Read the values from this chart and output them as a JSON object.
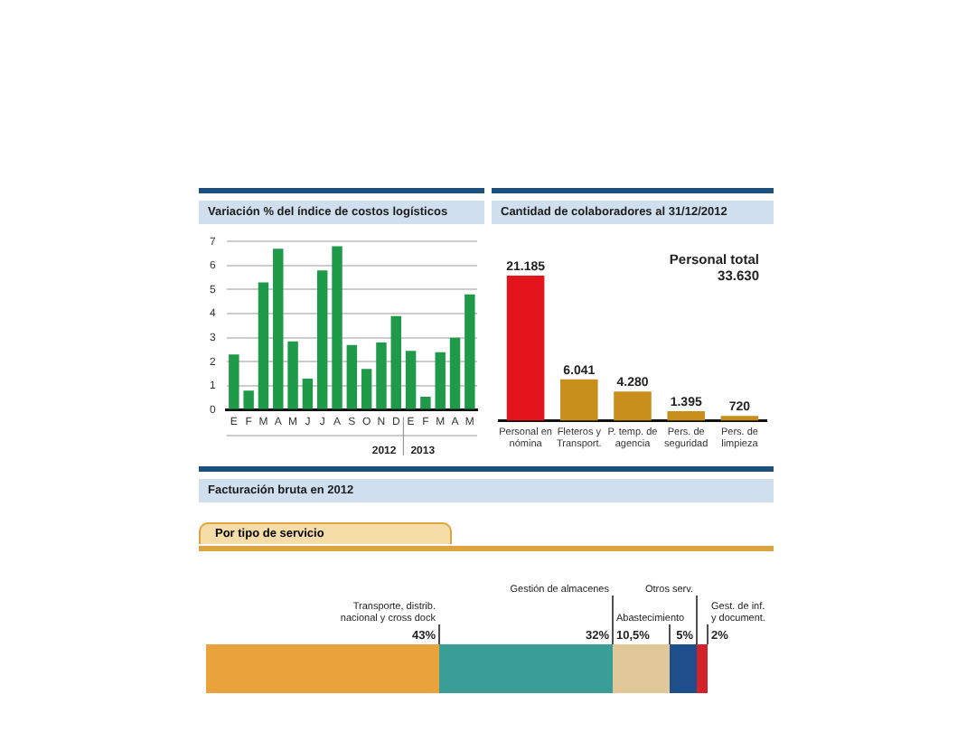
{
  "chart_data": [
    {
      "type": "bar",
      "title": "Variación % del índice de costos logísticos",
      "categories": [
        "E",
        "F",
        "M",
        "A",
        "M",
        "J",
        "J",
        "A",
        "S",
        "O",
        "N",
        "D",
        "E",
        "F",
        "M",
        "A",
        "M"
      ],
      "values": [
        2.3,
        0.8,
        5.3,
        6.7,
        2.85,
        1.3,
        5.8,
        6.8,
        2.7,
        1.7,
        2.8,
        3.9,
        2.45,
        0.55,
        2.4,
        3.0,
        4.8
      ],
      "color": "#1e9a48",
      "ylim": [
        0,
        7
      ],
      "yticks": [
        0,
        1,
        2,
        3,
        4,
        5,
        6,
        7
      ],
      "grid": "y",
      "annotations": [
        "2012",
        "2013"
      ]
    },
    {
      "type": "bar",
      "title": "Cantidad de colaboradores al 31/12/2012",
      "categories": [
        "Personal en nómina",
        "Fleteros y Transport.",
        "P. temp. de agencia",
        "Pers. de seguridad",
        "Pers. de limpieza"
      ],
      "values": [
        21185,
        6041,
        4280,
        1395,
        720
      ],
      "colors": [
        "#e3141c",
        "#c98f1c",
        "#c98f1c",
        "#c98f1c",
        "#c98f1c"
      ],
      "value_labels": [
        "21.185",
        "6.041",
        "4.280",
        "1.395",
        "720"
      ],
      "tick_labels": "x",
      "annotations": [
        "Personal total 33.630"
      ]
    },
    {
      "type": "bar",
      "title": "Facturación bruta en 2012",
      "subtitle": "Por tipo de servicio",
      "orientation": "horizontal",
      "stacked": true,
      "categories": [
        null
      ],
      "tick_labels": false,
      "series": [
        {
          "name": "Transporte, distrib. nacional y cross dock",
          "color": "#e8a33c",
          "values": [
            43
          ],
          "value_labels": [
            "43%"
          ]
        },
        {
          "name": "Gestión de almacenes",
          "color": "#3a9e96",
          "values": [
            32
          ],
          "value_labels": [
            "32%"
          ]
        },
        {
          "name": "Abastecimiento",
          "color": "#e0c89a",
          "values": [
            10.5
          ],
          "value_labels": [
            "10,5%"
          ]
        },
        {
          "name": "Otros serv.",
          "color": "#1f4e8c",
          "values": [
            5
          ],
          "value_labels": [
            "5%"
          ]
        },
        {
          "name": "Gest. de inf. y document.",
          "color": "#d2232a",
          "values": [
            2
          ],
          "value_labels": [
            "2%"
          ]
        }
      ]
    }
  ]
}
